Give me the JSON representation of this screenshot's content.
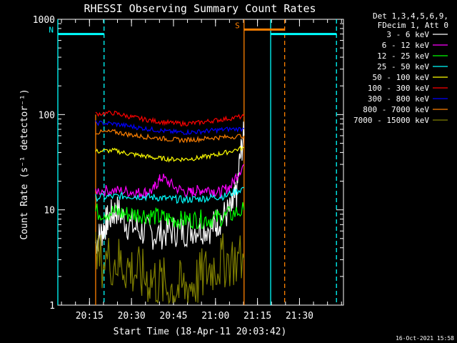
{
  "chart_data": {
    "type": "line",
    "title": "RHESSI Observing Summary Count Rates",
    "xlabel": "Start Time (18-Apr-11 20:03:42)",
    "ylabel": "Count Rate (s⁻¹ detector⁻¹)",
    "yscale": "log",
    "ylim": [
      1,
      1000
    ],
    "xlim_minutes_after_start": [
      0,
      102
    ],
    "x_ticks": [
      {
        "label": "20:15",
        "min": 11.3
      },
      {
        "label": "20:30",
        "min": 26.3
      },
      {
        "label": "20:45",
        "min": 41.3
      },
      {
        "label": "21:00",
        "min": 56.3
      },
      {
        "label": "21:15",
        "min": 71.3
      },
      {
        "label": "21:30",
        "min": 86.3
      }
    ],
    "y_ticks": [
      {
        "label": "1",
        "value": 1
      },
      {
        "label": "10",
        "value": 10
      },
      {
        "label": "100",
        "value": 100
      },
      {
        "label": "1000",
        "value": 1000
      }
    ],
    "legend_header": [
      "Det 1,3,4,5,6,9,",
      "FDecim 1, Att 0"
    ],
    "legend_position": "right",
    "series": [
      {
        "name": "3 - 6 keV",
        "color": "#ffffff",
        "x": [
          13.5,
          16,
          18,
          21,
          25,
          30,
          35,
          40,
          45,
          50,
          55,
          58,
          62,
          64,
          66.5
        ],
        "y": [
          4.5,
          6,
          8,
          10,
          7,
          6,
          5.5,
          6,
          6,
          6.5,
          6.5,
          8,
          10,
          15,
          60
        ]
      },
      {
        "name": "6 - 12 keV",
        "color": "#ff00ff",
        "x": [
          13.5,
          20,
          26,
          30,
          34,
          37,
          42,
          47,
          50,
          54,
          58,
          62,
          66.5
        ],
        "y": [
          16,
          16,
          15.5,
          15,
          16,
          22,
          17,
          15,
          16,
          16.5,
          15,
          18,
          30
        ]
      },
      {
        "name": "12 - 25 keV",
        "color": "#00ff00",
        "x": [
          13.5,
          20,
          25,
          30,
          35,
          40,
          45,
          50,
          55,
          60,
          66.5
        ],
        "y": [
          9.5,
          9.5,
          9,
          9,
          8.5,
          8,
          7.8,
          8,
          8,
          8.5,
          10
        ]
      },
      {
        "name": "25 - 50 keV",
        "color": "#00ffff",
        "x": [
          13.5,
          20,
          25,
          30,
          35,
          40,
          45,
          50,
          55,
          60,
          66.5
        ],
        "y": [
          13.5,
          13.8,
          14,
          13.8,
          13.5,
          13,
          12.8,
          13,
          13.5,
          14,
          17
        ]
      },
      {
        "name": "50 - 100 keV",
        "color": "#ffff00",
        "x": [
          13.5,
          20,
          25,
          30,
          35,
          40,
          45,
          50,
          55,
          60,
          66.5
        ],
        "y": [
          41,
          42,
          39,
          37,
          35,
          34,
          34,
          35,
          37,
          40,
          45
        ]
      },
      {
        "name": "100 - 300 keV",
        "color": "#ff0000",
        "x": [
          13.5,
          20,
          25,
          30,
          35,
          40,
          45,
          50,
          55,
          60,
          66.5
        ],
        "y": [
          102,
          104,
          96,
          90,
          85,
          82,
          80,
          82,
          86,
          90,
          96
        ]
      },
      {
        "name": "300 - 800 keV",
        "color": "#0000ff",
        "x": [
          13.5,
          20,
          25,
          30,
          35,
          40,
          45,
          50,
          55,
          60,
          66.5
        ],
        "y": [
          82,
          80,
          76,
          72,
          69,
          66,
          65,
          66,
          68,
          70,
          71
        ]
      },
      {
        "name": "800 - 7000 keV",
        "color": "#ff8000",
        "x": [
          13.5,
          20,
          25,
          30,
          35,
          40,
          45,
          50,
          55,
          60,
          66.5
        ],
        "y": [
          65,
          66,
          62,
          59,
          57,
          55,
          54,
          55,
          57,
          58,
          60
        ]
      },
      {
        "name": "7000 - 15000 keV",
        "color": "#808000",
        "x": [
          13.5,
          20,
          25,
          30,
          35,
          40,
          45,
          50,
          55,
          60,
          66.5
        ],
        "y": [
          3,
          3,
          2.5,
          2,
          1.8,
          1.5,
          1.5,
          1.8,
          2.5,
          3,
          3
        ]
      }
    ],
    "flags": [
      {
        "label": "N",
        "color": "#00ffff",
        "y": 700,
        "x_start": 0,
        "x_end": 16.5
      },
      {
        "label": "",
        "color": "#00ffff",
        "y": 700,
        "x_start": 76,
        "x_end": 99.5
      },
      {
        "label": "S",
        "color": "#ff8000",
        "y": 780,
        "x_start": 66.5,
        "x_end": 81
      }
    ],
    "vertical_markers": [
      {
        "x": 0,
        "color": "#00ffff",
        "style": "solid"
      },
      {
        "x": 16.5,
        "color": "#00ffff",
        "style": "dashed"
      },
      {
        "x": 66.5,
        "color": "#ff8000",
        "style": "solid"
      },
      {
        "x": 76,
        "color": "#00ffff",
        "style": "solid"
      },
      {
        "x": 81,
        "color": "#ff8000",
        "style": "dashed"
      },
      {
        "x": 99.5,
        "color": "#00ffff",
        "style": "dashed"
      },
      {
        "x": 13.5,
        "color": "#ff8000",
        "style": "solid",
        "y_top": 100
      }
    ],
    "footer_timestamp": "16-Oct-2021 15:58"
  }
}
